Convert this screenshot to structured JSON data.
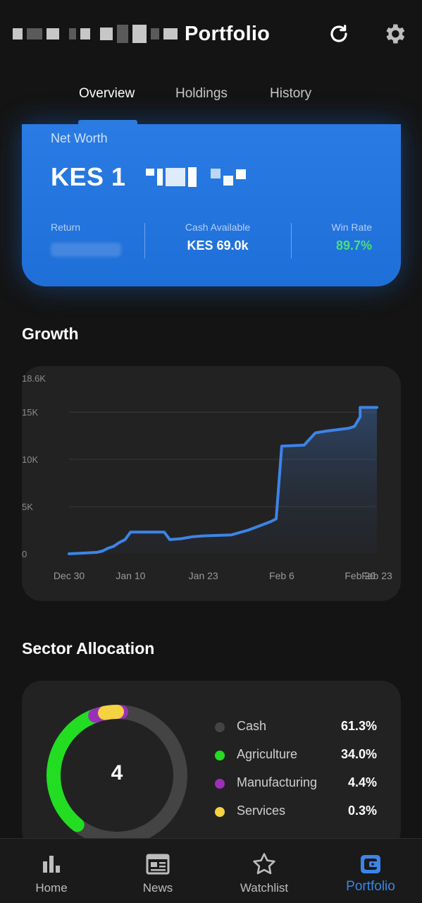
{
  "header": {
    "title": "Portfolio",
    "refresh_icon": "refresh-icon",
    "settings_icon": "gear-icon"
  },
  "tabs": [
    {
      "label": "Overview",
      "active": true
    },
    {
      "label": "Holdings",
      "active": false
    },
    {
      "label": "History",
      "active": false
    }
  ],
  "net_worth": {
    "label": "Net Worth",
    "value_prefix": "KES 1",
    "stats": [
      {
        "label": "Return",
        "value": ""
      },
      {
        "label": "Cash Available",
        "value": "KES 69.0k"
      },
      {
        "label": "Win Rate",
        "value": "89.7%"
      }
    ],
    "win_rate_color": "#4ade80"
  },
  "growth": {
    "title": "Growth",
    "chart_data": {
      "type": "area",
      "y_max_label": "18.6K",
      "y_ticks": [
        "15K",
        "10K",
        "5K",
        "0"
      ],
      "x_ticks": [
        "Dec 30",
        "Jan 10",
        "Jan 23",
        "Feb 6",
        "Feb 20",
        "Feb 23"
      ],
      "ylim": [
        0,
        18600
      ],
      "grid": true,
      "series": [
        {
          "color": "#3d84e8",
          "points": [
            [
              "Dec 30",
              0
            ],
            [
              "Jan 4",
              150
            ],
            [
              "Jan 5",
              300
            ],
            [
              "Jan 6",
              600
            ],
            [
              "Jan 7",
              800
            ],
            [
              "Jan 8",
              1200
            ],
            [
              "Jan 9",
              1500
            ],
            [
              "Jan 10",
              2300
            ],
            [
              "Jan 16",
              2300
            ],
            [
              "Jan 17",
              1500
            ],
            [
              "Jan 19",
              1600
            ],
            [
              "Jan 21",
              1800
            ],
            [
              "Jan 23",
              1900
            ],
            [
              "Jan 28",
              2000
            ],
            [
              "Jan 31",
              2500
            ],
            [
              "Feb 4",
              3400
            ],
            [
              "Feb 5",
              3700
            ],
            [
              "Feb 6",
              11400
            ],
            [
              "Feb 10",
              11500
            ],
            [
              "Feb 12",
              12800
            ],
            [
              "Feb 14",
              13000
            ],
            [
              "Feb 18",
              13300
            ],
            [
              "Feb 19",
              13500
            ],
            [
              "Feb 20",
              14500
            ],
            [
              "Feb 20",
              15500
            ],
            [
              "Feb 23",
              15500
            ]
          ]
        }
      ]
    }
  },
  "sector": {
    "title": "Sector Allocation",
    "center_value": "4",
    "chart_data": {
      "type": "pie",
      "categories": [
        "Cash",
        "Agriculture",
        "Manufacturing",
        "Services"
      ],
      "values": [
        61.3,
        34.0,
        4.4,
        0.3
      ],
      "colors": [
        "#444444",
        "#22dd22",
        "#9b30b8",
        "#f5d340"
      ]
    },
    "items": [
      {
        "name": "Cash",
        "pct": "61.3%",
        "color": "#444444"
      },
      {
        "name": "Agriculture",
        "pct": "34.0%",
        "color": "#22dd22"
      },
      {
        "name": "Manufacturing",
        "pct": "4.4%",
        "color": "#9b30b8"
      },
      {
        "name": "Services",
        "pct": "0.3%",
        "color": "#f5d340"
      }
    ]
  },
  "bottom_nav": [
    {
      "label": "Home",
      "icon": "bar-chart-icon",
      "active": false
    },
    {
      "label": "News",
      "icon": "newspaper-icon",
      "active": false
    },
    {
      "label": "Watchlist",
      "icon": "star-icon",
      "active": false
    },
    {
      "label": "Portfolio",
      "icon": "wallet-icon",
      "active": true
    }
  ]
}
